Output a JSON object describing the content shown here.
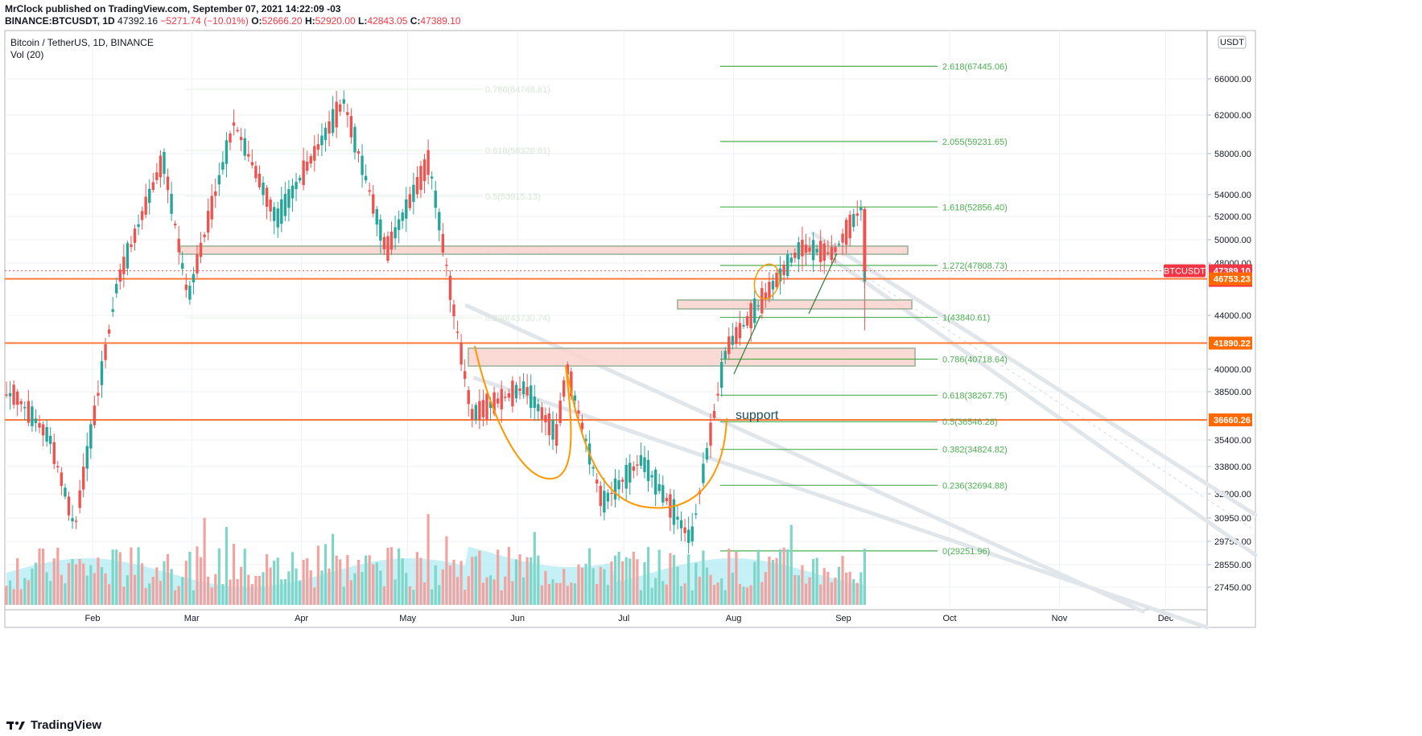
{
  "header": {
    "publisher_line": "MrClock published on TradingView.com, September 07, 2021 14:22:09 -03",
    "symbol": "BINANCE:BTCUSDT, 1D",
    "last": "47392.16",
    "change": "−5271.74 (−10.01%)",
    "open_label": "O:",
    "open": "52666.20",
    "high_label": "H:",
    "high": "52920.00",
    "low_label": "L:",
    "low": "42843.05",
    "close_label": "C:",
    "close": "47389.10"
  },
  "legend": {
    "title": "Bitcoin / TetherUS, 1D, BINANCE",
    "volume": "Vol (20)"
  },
  "currency_badge": "USDT",
  "footer": {
    "brand": "TradingView"
  },
  "colors": {
    "up": "#26a69a",
    "down": "#ef5350",
    "fib": "#4caf50",
    "orange_line": "#ff7a3a",
    "zone_fill": "#fbd5d0",
    "zone_border": "#a7b7a0",
    "volume_up": "#7fd6c8",
    "volume_down": "#f3a2a0",
    "volume_ma": "#b2ebf2",
    "curve": "#ff9800"
  },
  "chart_data": {
    "type": "candlestick",
    "title": "Bitcoin / TetherUS, 1D, BINANCE",
    "x_ticks": [
      "Feb",
      "Mar",
      "Apr",
      "May",
      "Jun",
      "Jul",
      "Aug",
      "Sep",
      "Oct",
      "Nov",
      "Dec"
    ],
    "y_ticks": [
      "66000.00",
      "62000.00",
      "58000.00",
      "54000.00",
      "52000.00",
      "50000.00",
      "48000.00",
      "44000.00",
      "40000.00",
      "38500.00",
      "35400.00",
      "33800.00",
      "32200.00",
      "30950.00",
      "29750.00",
      "28550.00",
      "27450.00"
    ],
    "y_scale": "log",
    "price_labels": [
      {
        "name": "BTCUSDT",
        "value": "47389.10",
        "countdown": "06:37:51",
        "color": "#f23645"
      },
      {
        "value": "46753.23",
        "color": "#ff6a00"
      },
      {
        "value": "41890.22",
        "color": "#ff6a00"
      },
      {
        "value": "36660.26",
        "color": "#ff6a00"
      }
    ],
    "fib_extension": [
      {
        "ratio": "2.618",
        "price": 67445.06
      },
      {
        "ratio": "2.055",
        "price": 59231.65
      },
      {
        "ratio": "1.618",
        "price": 52856.4
      },
      {
        "ratio": "1.272",
        "price": 47808.73
      },
      {
        "ratio": "1",
        "price": 43840.61
      },
      {
        "ratio": "0.786",
        "price": 40718.64
      },
      {
        "ratio": "0.618",
        "price": 38267.75
      },
      {
        "ratio": "0.5",
        "price": 36546.28
      },
      {
        "ratio": "0.382",
        "price": 34824.82
      },
      {
        "ratio": "0.236",
        "price": 32694.88
      },
      {
        "ratio": "0",
        "price": 29251.96
      }
    ],
    "faded_fib": [
      {
        "label": "0.786(64748.61)"
      },
      {
        "label": "0.618(58328.61)"
      },
      {
        "label": "0.5(53915.13)"
      },
      {
        "label": "0.382(49500.12)"
      },
      {
        "label": "0.236(43730.74)"
      }
    ],
    "horizontal_lines": [
      46753.23,
      41890.22,
      36660.26
    ],
    "annotation": "support",
    "close_series": [
      {
        "date": "2021-01-10",
        "close": 38300
      },
      {
        "date": "2021-01-20",
        "close": 35500
      },
      {
        "date": "2021-01-27",
        "close": 30400
      },
      {
        "date": "2021-02-08",
        "close": 46400
      },
      {
        "date": "2021-02-21",
        "close": 57500
      },
      {
        "date": "2021-02-28",
        "close": 45200
      },
      {
        "date": "2021-03-13",
        "close": 61200
      },
      {
        "date": "2021-03-25",
        "close": 51700
      },
      {
        "date": "2021-04-13",
        "close": 63500
      },
      {
        "date": "2021-04-25",
        "close": 49000
      },
      {
        "date": "2021-05-07",
        "close": 57300
      },
      {
        "date": "2021-05-19",
        "close": 37000
      },
      {
        "date": "2021-06-03",
        "close": 38800
      },
      {
        "date": "2021-06-12",
        "close": 35700
      },
      {
        "date": "2021-06-15",
        "close": 40100
      },
      {
        "date": "2021-06-25",
        "close": 31700
      },
      {
        "date": "2021-07-06",
        "close": 34200
      },
      {
        "date": "2021-07-20",
        "close": 29800
      },
      {
        "date": "2021-07-30",
        "close": 41500
      },
      {
        "date": "2021-08-14",
        "close": 47000
      },
      {
        "date": "2021-08-20",
        "close": 49300
      },
      {
        "date": "2021-08-29",
        "close": 48800
      },
      {
        "date": "2021-09-06",
        "close": 52700
      },
      {
        "date": "2021-09-07",
        "close": 47389
      }
    ]
  }
}
